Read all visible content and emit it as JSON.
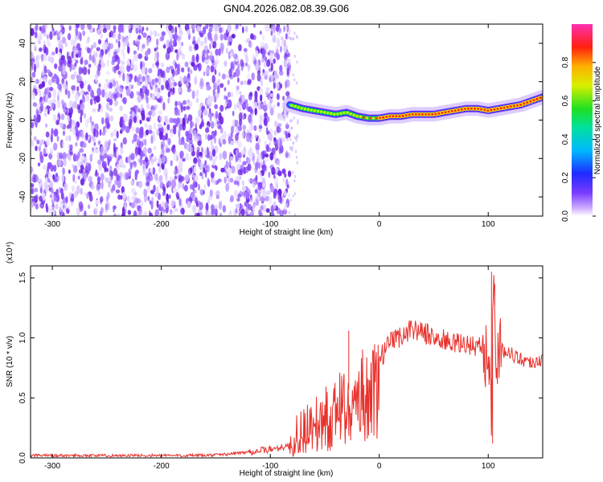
{
  "title": "GN04.2026.082.08.39.G06",
  "chart_data": [
    {
      "type": "heatmap",
      "xlabel": "Height of straight line (km)",
      "ylabel": "Frequency (Hz)",
      "xlim": [
        -320,
        150
      ],
      "ylim": [
        -50,
        50
      ],
      "x_ticks": [
        -300,
        -200,
        -100,
        0,
        100
      ],
      "y_ticks": [
        -40,
        -20,
        0,
        20,
        40
      ],
      "noise_region_x": [
        -320,
        -82
      ],
      "ridge": {
        "description_points_x": [
          -82,
          -70,
          -60,
          -50,
          -40,
          -30,
          -20,
          -10,
          0,
          10,
          20,
          30,
          40,
          50,
          60,
          70,
          80,
          90,
          100,
          110,
          120,
          130,
          140,
          150
        ],
        "description_points_y": [
          8,
          6,
          5,
          4,
          3,
          4,
          2,
          1,
          1,
          2,
          2,
          3,
          3,
          3,
          4,
          5,
          6,
          6,
          5,
          6,
          7,
          8,
          10,
          12
        ]
      },
      "colorbar": {
        "label": "Normalized spectral amplitude",
        "ticks": [
          "0.0",
          "0.2",
          "0.4",
          "0.6",
          "0.8"
        ],
        "tick_values": [
          0,
          0.2,
          0.4,
          0.6,
          0.8
        ],
        "range": [
          0,
          1
        ]
      }
    },
    {
      "type": "line",
      "xlabel": "Height of straight line (km)",
      "ylabel": "SNR (10 * v/v)",
      "scale_label": "(x10⁴)",
      "xlim": [
        -320,
        150
      ],
      "ylim": [
        0,
        1.6
      ],
      "x_ticks": [
        -300,
        -200,
        -100,
        0,
        100
      ],
      "y_ticks": [
        "0.0",
        "0.5",
        "1.0",
        "1.5"
      ],
      "y_tick_values": [
        0,
        0.5,
        1.0,
        1.5
      ],
      "series": [
        {
          "color": "#e8312c",
          "x": [
            -320,
            -250,
            -200,
            -160,
            -140,
            -120,
            -100,
            -90,
            -80,
            -70,
            -60,
            -50,
            -40,
            -30,
            -20,
            -10,
            0,
            10,
            20,
            30,
            40,
            50,
            60,
            70,
            80,
            90,
            95,
            100,
            103,
            105,
            108,
            110,
            120,
            130,
            140,
            150
          ],
          "values": [
            0.02,
            0.02,
            0.02,
            0.02,
            0.03,
            0.05,
            0.07,
            0.09,
            0.1,
            0.2,
            0.3,
            0.38,
            0.5,
            0.55,
            0.65,
            0.75,
            0.82,
            0.95,
            1.02,
            1.08,
            1.05,
            1.0,
            0.98,
            0.95,
            0.95,
            0.93,
            0.9,
            0.85,
            0.4,
            1.5,
            0.8,
            0.9,
            0.88,
            0.82,
            0.8,
            0.82
          ]
        }
      ]
    }
  ]
}
